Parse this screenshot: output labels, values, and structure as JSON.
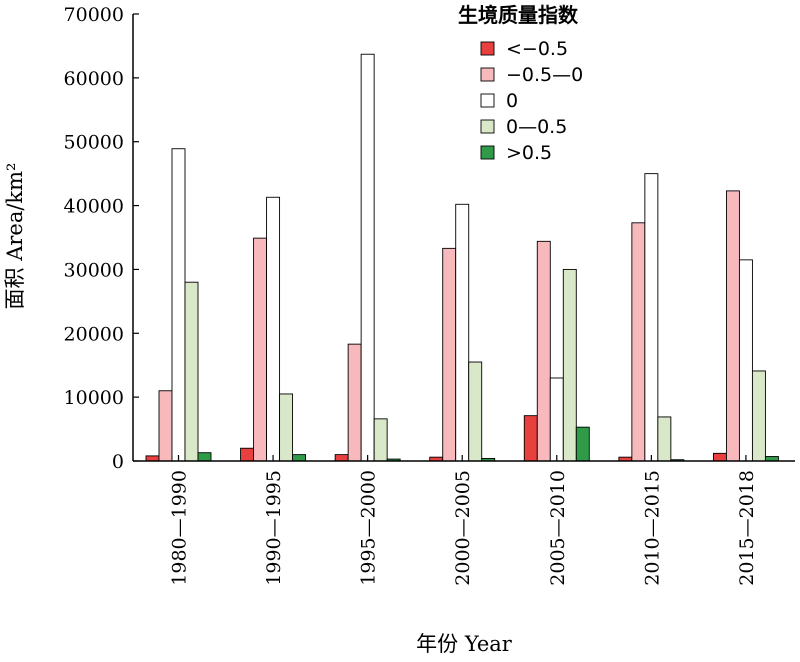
{
  "chart_data": {
    "type": "bar",
    "xlabel": "年份 Year",
    "ylabel": "面积 Area/km²",
    "ylim": [
      0,
      70000
    ],
    "yticks": [
      0,
      10000,
      20000,
      30000,
      40000,
      50000,
      60000,
      70000
    ],
    "grid": false,
    "categories": [
      "1980—1990",
      "1990—1995",
      "1995—2000",
      "2000—2005",
      "2005—2010",
      "2010—2015",
      "2015—2018"
    ],
    "legend": {
      "title": "生境质量指数",
      "placement": "top-right"
    },
    "series": [
      {
        "name": "<−0.5",
        "color": "#e8403f",
        "values": [
          800,
          2000,
          1000,
          600,
          7100,
          600,
          1200
        ]
      },
      {
        "name": "−0.5—0",
        "color": "#f8b9bd",
        "values": [
          11000,
          34900,
          18300,
          33300,
          34400,
          37300,
          42300
        ]
      },
      {
        "name": "0",
        "color": "#ffffff",
        "values": [
          48900,
          41300,
          63700,
          40200,
          13000,
          45000,
          31500
        ]
      },
      {
        "name": "0—0.5",
        "color": "#d9e8c9",
        "values": [
          28000,
          10500,
          6600,
          15500,
          30000,
          6900,
          14100
        ]
      },
      {
        "name": ">0.5",
        "color": "#2f9b48",
        "values": [
          1300,
          1000,
          300,
          400,
          5300,
          200,
          700
        ]
      }
    ]
  }
}
